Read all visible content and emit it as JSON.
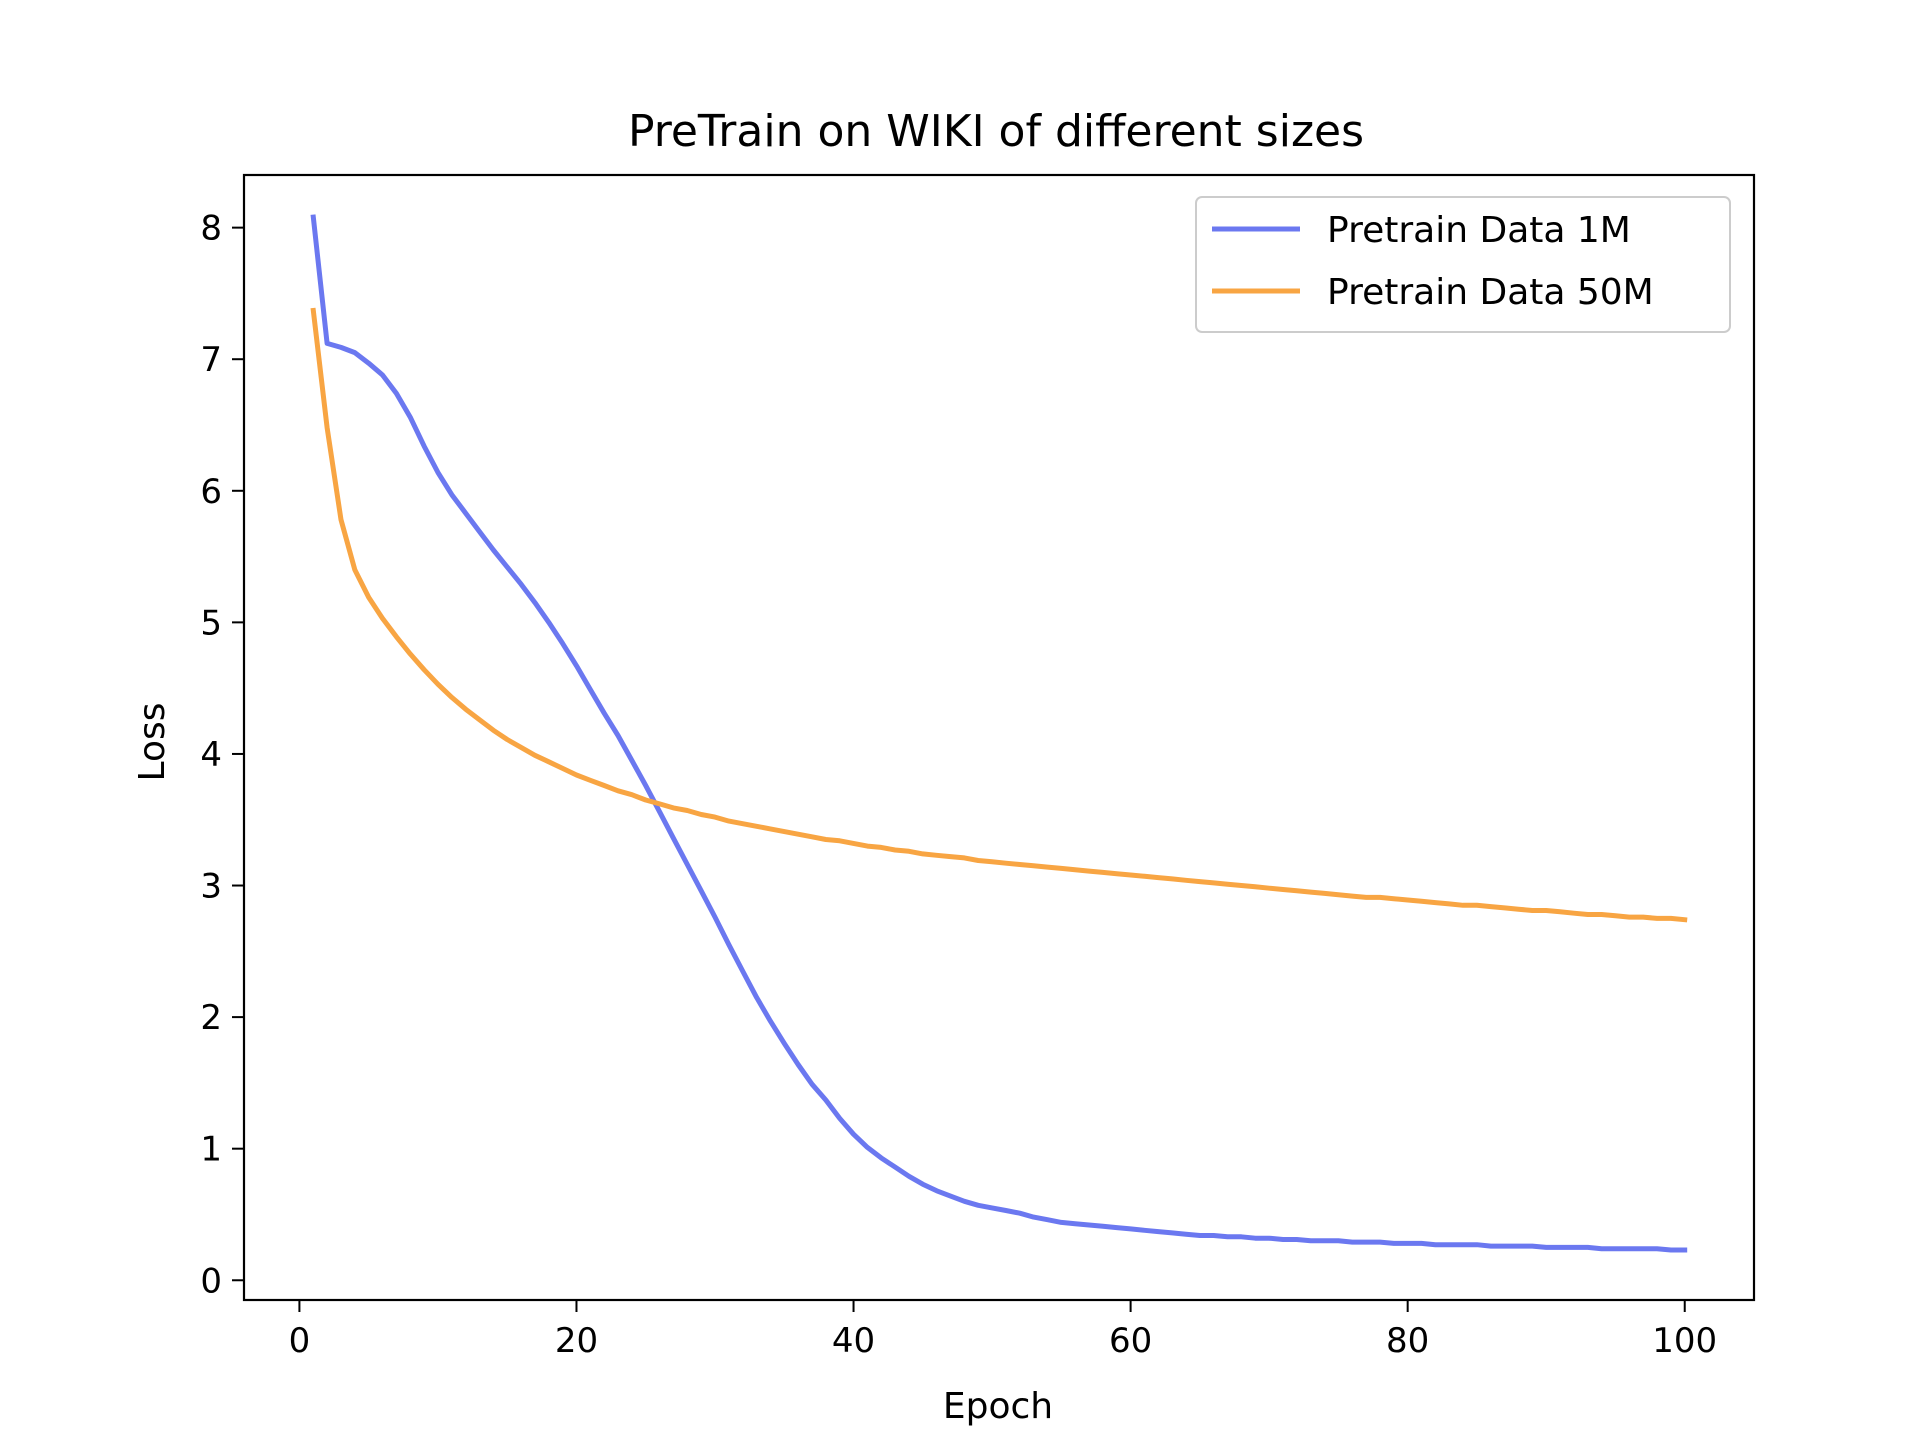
{
  "chart_data": {
    "type": "line",
    "title": "PreTrain on WIKI of different sizes",
    "xlabel": "Epoch",
    "ylabel": "Loss",
    "xlim": [
      -4,
      105
    ],
    "ylim": [
      -0.15,
      8.4
    ],
    "xticks": [
      0,
      20,
      40,
      60,
      80,
      100
    ],
    "yticks": [
      0,
      1,
      2,
      3,
      4,
      5,
      6,
      7,
      8
    ],
    "grid": false,
    "legend_position": "top-right",
    "x": [
      1,
      2,
      3,
      4,
      5,
      6,
      7,
      8,
      9,
      10,
      11,
      12,
      13,
      14,
      15,
      16,
      17,
      18,
      19,
      20,
      21,
      22,
      23,
      24,
      25,
      26,
      27,
      28,
      29,
      30,
      31,
      32,
      33,
      34,
      35,
      36,
      37,
      38,
      39,
      40,
      41,
      42,
      43,
      44,
      45,
      46,
      47,
      48,
      49,
      50,
      51,
      52,
      53,
      54,
      55,
      56,
      57,
      58,
      59,
      60,
      61,
      62,
      63,
      64,
      65,
      66,
      67,
      68,
      69,
      70,
      71,
      72,
      73,
      74,
      75,
      76,
      77,
      78,
      79,
      80,
      81,
      82,
      83,
      84,
      85,
      86,
      87,
      88,
      89,
      90,
      91,
      92,
      93,
      94,
      95,
      96,
      97,
      98,
      99,
      100
    ],
    "series": [
      {
        "name": "Pretrain Data 1M",
        "color": "#6b78f0",
        "values": [
          8.08,
          7.12,
          7.09,
          7.05,
          6.97,
          6.88,
          6.74,
          6.56,
          6.34,
          6.14,
          5.97,
          5.83,
          5.69,
          5.55,
          5.42,
          5.29,
          5.15,
          5.0,
          4.84,
          4.67,
          4.49,
          4.31,
          4.14,
          3.95,
          3.76,
          3.56,
          3.36,
          3.16,
          2.96,
          2.76,
          2.55,
          2.35,
          2.15,
          1.97,
          1.8,
          1.64,
          1.49,
          1.37,
          1.23,
          1.11,
          1.01,
          0.93,
          0.86,
          0.79,
          0.73,
          0.68,
          0.64,
          0.6,
          0.57,
          0.55,
          0.53,
          0.51,
          0.48,
          0.46,
          0.44,
          0.43,
          0.42,
          0.41,
          0.4,
          0.39,
          0.38,
          0.37,
          0.36,
          0.35,
          0.34,
          0.34,
          0.33,
          0.33,
          0.32,
          0.32,
          0.31,
          0.31,
          0.3,
          0.3,
          0.3,
          0.29,
          0.29,
          0.29,
          0.28,
          0.28,
          0.28,
          0.27,
          0.27,
          0.27,
          0.27,
          0.26,
          0.26,
          0.26,
          0.26,
          0.25,
          0.25,
          0.25,
          0.25,
          0.24,
          0.24,
          0.24,
          0.24,
          0.24,
          0.23,
          0.23
        ]
      },
      {
        "name": "Pretrain Data 50M",
        "color": "#f8a543",
        "values": [
          7.37,
          6.48,
          5.78,
          5.4,
          5.19,
          5.03,
          4.89,
          4.76,
          4.64,
          4.53,
          4.43,
          4.34,
          4.26,
          4.18,
          4.11,
          4.05,
          3.99,
          3.94,
          3.89,
          3.84,
          3.8,
          3.76,
          3.72,
          3.69,
          3.65,
          3.62,
          3.59,
          3.57,
          3.54,
          3.52,
          3.49,
          3.47,
          3.45,
          3.43,
          3.41,
          3.39,
          3.37,
          3.35,
          3.34,
          3.32,
          3.3,
          3.29,
          3.27,
          3.26,
          3.24,
          3.23,
          3.22,
          3.21,
          3.19,
          3.18,
          3.17,
          3.16,
          3.15,
          3.14,
          3.13,
          3.12,
          3.11,
          3.1,
          3.09,
          3.08,
          3.07,
          3.06,
          3.05,
          3.04,
          3.03,
          3.02,
          3.01,
          3.0,
          2.99,
          2.98,
          2.97,
          2.96,
          2.95,
          2.94,
          2.93,
          2.92,
          2.91,
          2.91,
          2.9,
          2.89,
          2.88,
          2.87,
          2.86,
          2.85,
          2.85,
          2.84,
          2.83,
          2.82,
          2.81,
          2.81,
          2.8,
          2.79,
          2.78,
          2.78,
          2.77,
          2.76,
          2.76,
          2.75,
          2.75,
          2.74
        ]
      }
    ]
  }
}
